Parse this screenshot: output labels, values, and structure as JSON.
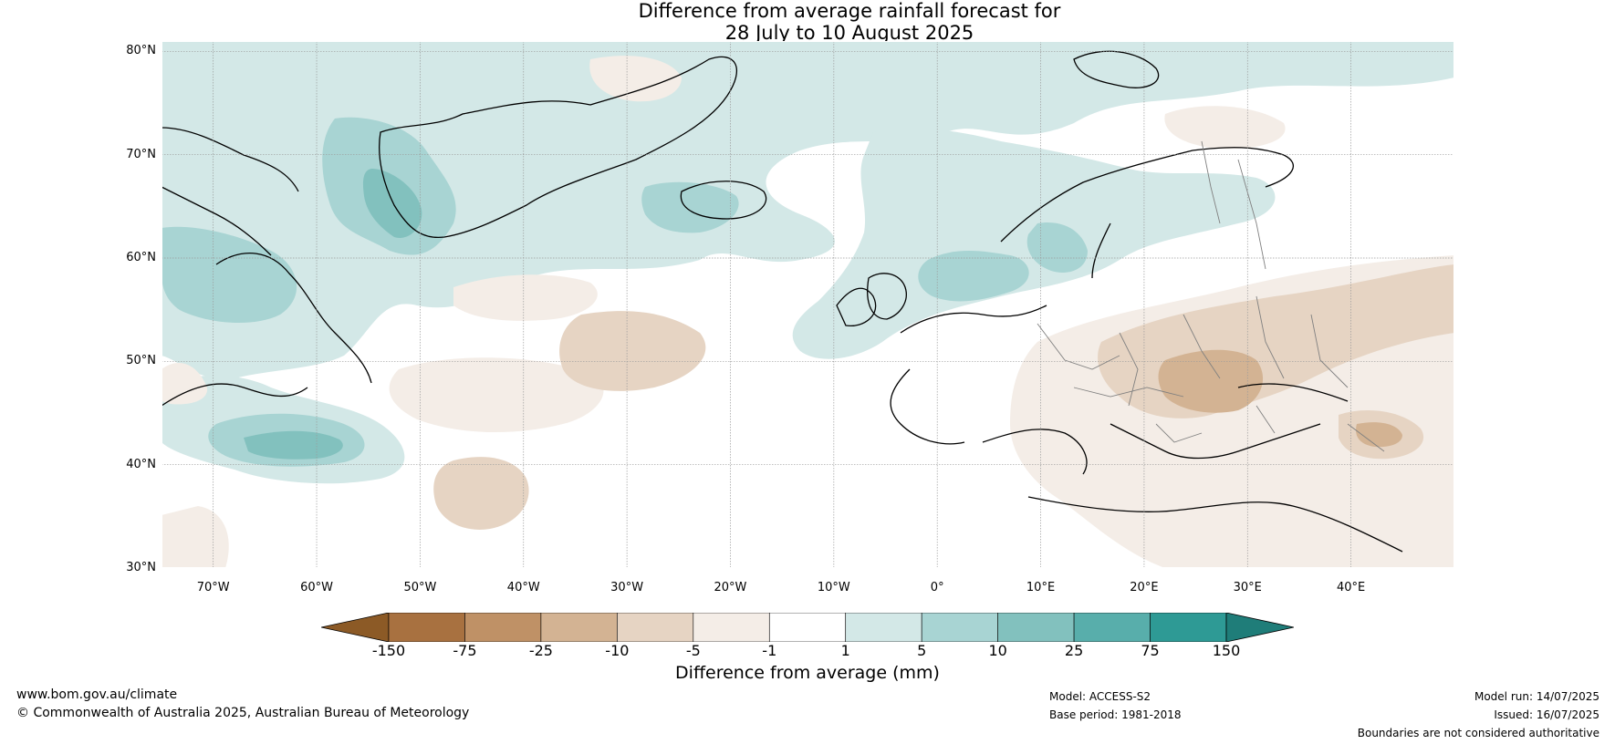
{
  "title": {
    "line1": "Difference from average rainfall forecast for",
    "line2": "28 July to 10 August 2025"
  },
  "map": {
    "projection": "plate carree",
    "lon_range": [
      -75,
      50
    ],
    "lat_range": [
      30,
      81
    ],
    "lat_labels": [
      "80°N",
      "70°N",
      "60°N",
      "50°N",
      "40°N",
      "30°N"
    ],
    "lat_values": [
      80,
      70,
      60,
      50,
      40,
      30
    ],
    "lon_labels": [
      "70°W",
      "60°W",
      "50°W",
      "40°W",
      "30°W",
      "20°W",
      "10°W",
      "0°",
      "10°E",
      "20°E",
      "30°E",
      "40°E"
    ],
    "lon_values": [
      -70,
      -60,
      -50,
      -40,
      -30,
      -20,
      -10,
      0,
      10,
      20,
      30,
      40
    ],
    "colors": {
      "gridline": "#9a9a9a",
      "coastline": "#000000",
      "border": "#808080"
    }
  },
  "colorbar": {
    "label": "Difference from average (mm)",
    "ticks": [
      "-150",
      "-75",
      "-25",
      "-10",
      "-5",
      "-1",
      "1",
      "5",
      "10",
      "25",
      "75",
      "150"
    ],
    "colors": {
      "under": "#8c5a26",
      "bins": [
        "#a87140",
        "#bf9166",
        "#d3b393",
        "#e6d4c3",
        "#f4ede7",
        "#ffffff",
        "#d3e8e7",
        "#a8d4d3",
        "#82c1be",
        "#58aeab",
        "#2e9a95"
      ],
      "over": "#1f7d79"
    }
  },
  "footer": {
    "website": "www.bom.gov.au/climate",
    "copyright": "© Commonwealth of Australia 2025, Australian Bureau of Meteorology",
    "model": "Model: ACCESS-S2",
    "base_period": "Base period: 1981-2018",
    "model_run": "Model run: 14/07/2025",
    "issued": "Issued: 16/07/2025",
    "disclaimer": "Boundaries are not considered authoritative"
  }
}
